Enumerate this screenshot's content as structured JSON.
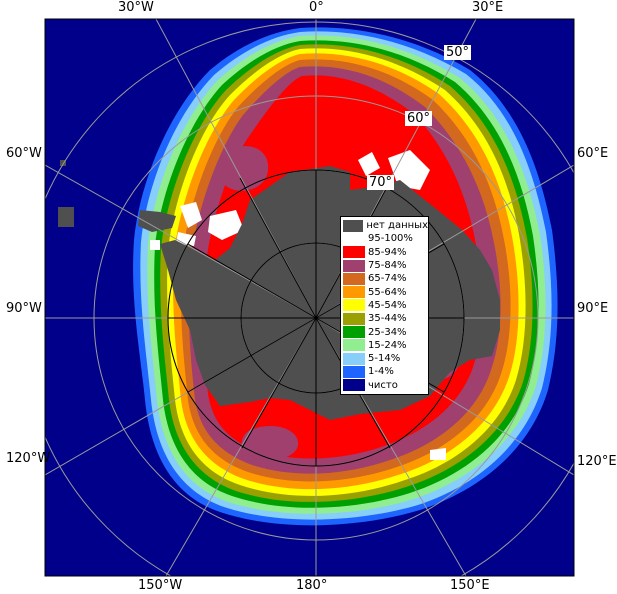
{
  "map": {
    "colors": {
      "ocean": "#00008b",
      "land": "#4f4f4f",
      "no_data": "#4f4f4f",
      "grid": "#9a9a9a"
    },
    "longitude_labels": {
      "top": [
        "30°W",
        "0°",
        "30°E"
      ],
      "left": [
        "60°W",
        "90°W",
        "120°W"
      ],
      "right": [
        "60°E",
        "90°E",
        "120°E"
      ],
      "bottom": [
        "150°W",
        "180°",
        "150°E"
      ]
    },
    "latitude_labels": [
      "50°",
      "60°",
      "70°"
    ]
  },
  "legend": {
    "items": [
      {
        "label": "нет данных",
        "color": "#4f4f4f"
      },
      {
        "label": "95-100%",
        "color": "#ffffff"
      },
      {
        "label": "85-94%",
        "color": "#ff0000"
      },
      {
        "label": "75-84%",
        "color": "#a0406e"
      },
      {
        "label": "65-74%",
        "color": "#d2691e"
      },
      {
        "label": "55-64%",
        "color": "#ff9900"
      },
      {
        "label": "45-54%",
        "color": "#ffff00"
      },
      {
        "label": "35-44%",
        "color": "#9aa000"
      },
      {
        "label": "25-34%",
        "color": "#00a000"
      },
      {
        "label": "15-24%",
        "color": "#90ee90"
      },
      {
        "label": "5-14%",
        "color": "#87cefa"
      },
      {
        "label": "1-4%",
        "color": "#1e64ff"
      },
      {
        "label": "чисто",
        "color": "#00008b"
      }
    ]
  }
}
